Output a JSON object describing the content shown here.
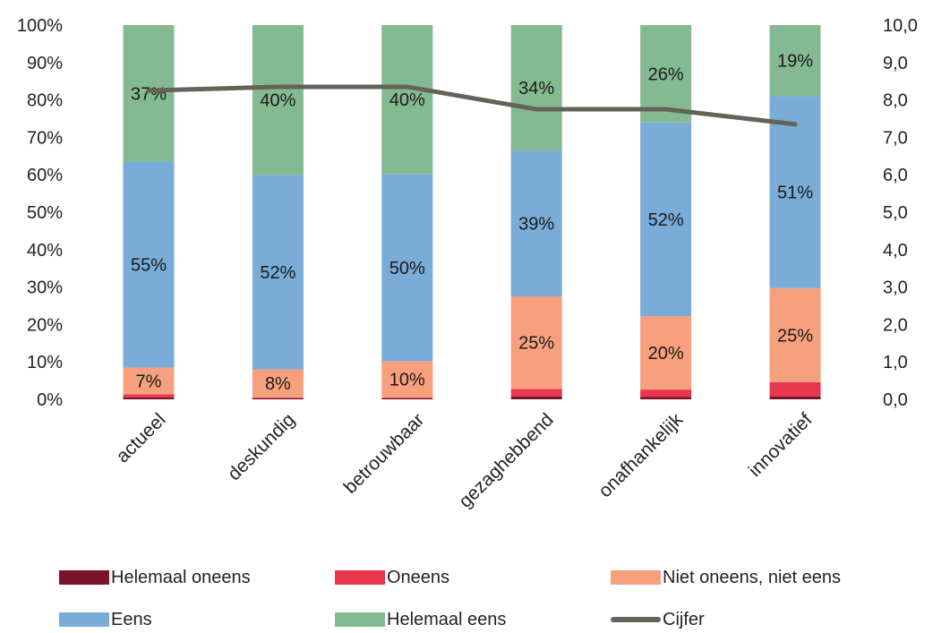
{
  "chart_data": {
    "type": "bar",
    "stacked": true,
    "categories": [
      "actueel",
      "deskundig",
      "betrouwbaar",
      "gezaghebbend",
      "onafhankelijk",
      "innovatief"
    ],
    "series": [
      {
        "name": "Helemaal oneens",
        "color": "#7b1428",
        "values": [
          0.5,
          0.3,
          0.3,
          0.8,
          0.6,
          0.8
        ],
        "labels": [
          "",
          "",
          "",
          "",
          "",
          ""
        ]
      },
      {
        "name": "Oneens",
        "color": "#e8364f",
        "values": [
          0.8,
          0.2,
          0.2,
          2.0,
          2.0,
          3.8
        ],
        "labels": [
          "",
          "",
          "",
          "",
          "",
          ""
        ]
      },
      {
        "name": "Niet oneens, niet eens",
        "color": "#f7a07e",
        "values": [
          7.2,
          7.5,
          9.7,
          24.7,
          19.6,
          25.1
        ],
        "labels": [
          "7%",
          "8%",
          "10%",
          "25%",
          "20%",
          "25%"
        ]
      },
      {
        "name": "Eens",
        "color": "#79acd7",
        "values": [
          55.0,
          52.0,
          50.0,
          39.0,
          51.8,
          51.3
        ],
        "labels": [
          "55%",
          "52%",
          "50%",
          "39%",
          "52%",
          "51%"
        ]
      },
      {
        "name": "Helemaal eens",
        "color": "#84ba92",
        "values": [
          36.5,
          40.0,
          39.8,
          33.5,
          26.0,
          19.0
        ],
        "labels": [
          "37%",
          "40%",
          "40%",
          "34%",
          "26%",
          "19%"
        ]
      }
    ],
    "line_series": {
      "name": "Cijfer",
      "color": "#636359",
      "values": [
        8.25,
        8.35,
        8.35,
        7.75,
        7.75,
        7.35
      ],
      "axis": "right"
    },
    "y_left": {
      "min": 0,
      "max": 100,
      "step": 10,
      "ticks": [
        "0%",
        "10%",
        "20%",
        "30%",
        "40%",
        "50%",
        "60%",
        "70%",
        "80%",
        "90%",
        "100%"
      ]
    },
    "y_right": {
      "min": 0,
      "max": 10,
      "step": 1,
      "ticks": [
        "0,0",
        "1,0",
        "2,0",
        "3,0",
        "4,0",
        "5,0",
        "6,0",
        "7,0",
        "8,0",
        "9,0",
        "10,0"
      ]
    },
    "title": "",
    "xlabel": "",
    "ylabel": "",
    "grid": false,
    "legend_position": "bottom"
  }
}
